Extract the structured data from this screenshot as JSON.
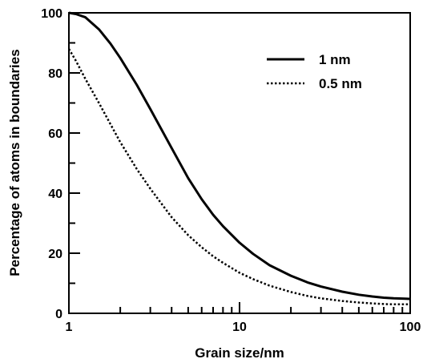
{
  "chart_data": {
    "type": "line",
    "title": "",
    "xlabel": "Grain size/nm",
    "ylabel": "Percentage of atoms in boundaries",
    "xscale": "log",
    "xlim": [
      1,
      100
    ],
    "ylim": [
      0,
      100
    ],
    "x_ticks": [
      1,
      10,
      100
    ],
    "x_tick_labels": [
      "1",
      "10",
      "100"
    ],
    "y_ticks": [
      0,
      20,
      40,
      60,
      80,
      100
    ],
    "y_tick_labels": [
      "0",
      "20",
      "40",
      "60",
      "80",
      "100"
    ],
    "grid": false,
    "legend_position": "top-right",
    "series": [
      {
        "name": "1 nm",
        "style": "solid",
        "color": "#000000",
        "x": [
          1,
          1.1,
          1.25,
          1.5,
          1.75,
          2,
          2.5,
          3,
          4,
          5,
          6,
          7,
          8,
          10,
          12,
          15,
          20,
          25,
          30,
          40,
          50,
          60,
          70,
          80,
          90,
          100
        ],
        "y": [
          100,
          99.6,
          98.5,
          94.5,
          89.8,
          85,
          76,
          68,
          55,
          45,
          38,
          32.8,
          29,
          23.5,
          19.8,
          16,
          12.5,
          10.3,
          8.9,
          7.2,
          6.2,
          5.6,
          5.2,
          5,
          4.9,
          4.8
        ]
      },
      {
        "name": "0.5 nm",
        "style": "dotted",
        "color": "#000000",
        "x": [
          1,
          1.1,
          1.25,
          1.5,
          1.75,
          2,
          2.5,
          3,
          4,
          5,
          6,
          7,
          8,
          10,
          12,
          15,
          20,
          25,
          30,
          40,
          50,
          60,
          70,
          80,
          90,
          100
        ],
        "y": [
          88,
          84,
          78,
          70,
          63,
          57,
          48,
          41.5,
          32,
          26,
          22,
          19,
          16.8,
          13.5,
          11.4,
          9.2,
          7.1,
          5.8,
          5,
          4.1,
          3.6,
          3.3,
          3.1,
          3,
          3,
          3
        ]
      }
    ]
  }
}
